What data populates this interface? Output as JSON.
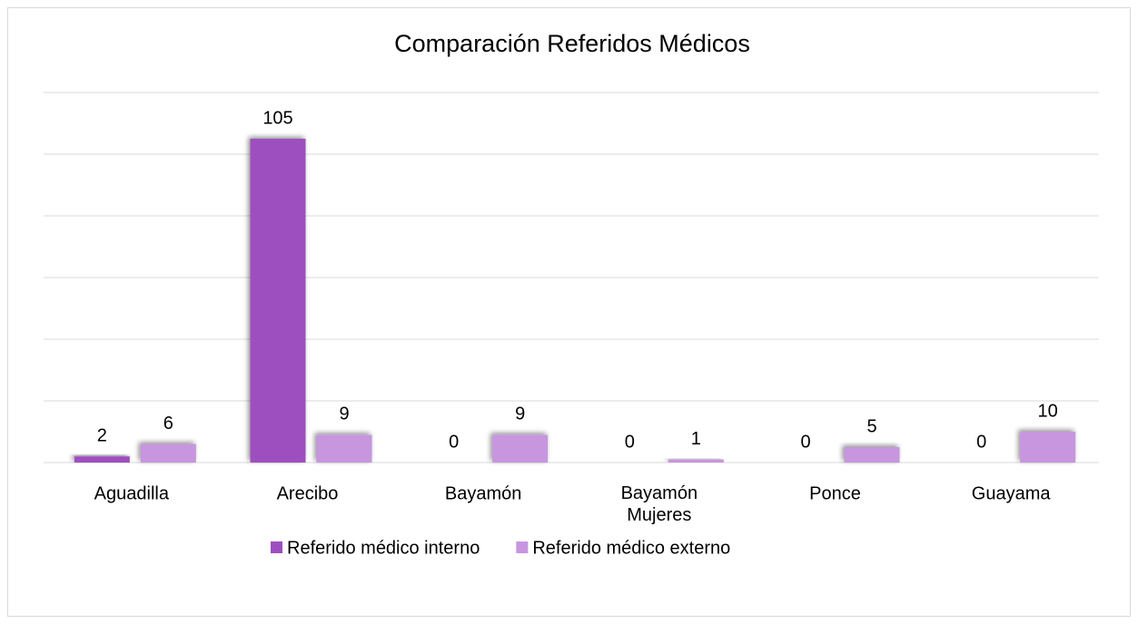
{
  "chart_data": {
    "type": "bar",
    "title": "Comparación Referidos Médicos",
    "categories": [
      "Aguadilla",
      "Arecibo",
      "Bayamón",
      "Bayamón Mujeres",
      "Ponce",
      "Guayama"
    ],
    "series": [
      {
        "name": "Referido médico interno",
        "color": "#9e4fbf",
        "values": [
          2,
          105,
          0,
          0,
          0,
          0
        ]
      },
      {
        "name": "Referido médico externo",
        "color": "#c796df",
        "values": [
          6,
          9,
          9,
          1,
          5,
          10
        ]
      }
    ],
    "ylim": [
      0,
      120
    ],
    "yticks": [
      0,
      20,
      40,
      60,
      80,
      100,
      120
    ],
    "grid": true,
    "legend": "bottom"
  }
}
